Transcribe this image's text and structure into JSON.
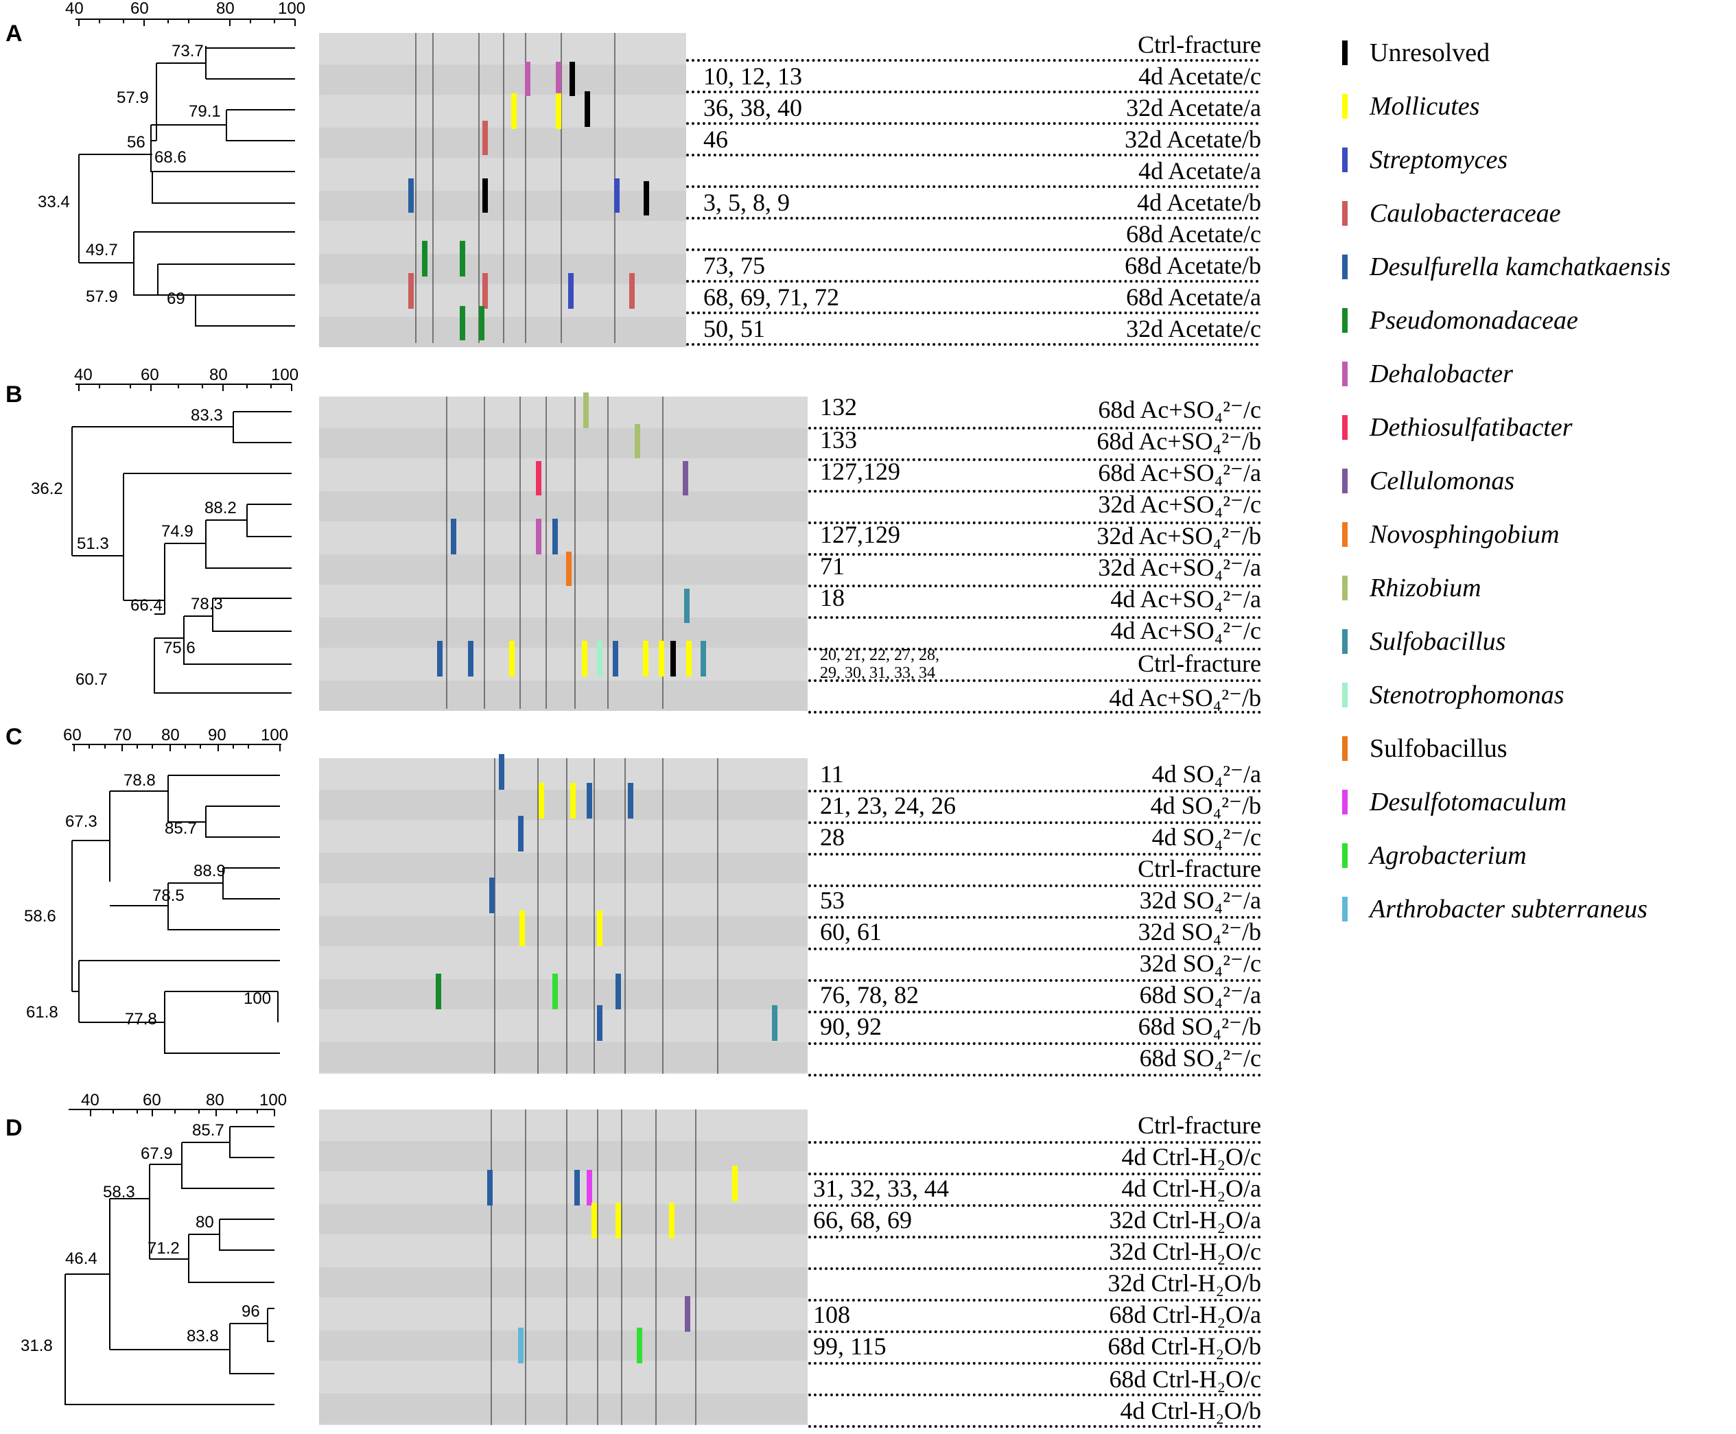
{
  "colors": {
    "unresolved": "#000000",
    "mollicutes": "#ffff00",
    "streptomyces": "#3b4cc0",
    "caulobacteraceae": "#cd5c5c",
    "desulfurella": "#2a5ea0",
    "pseudomonadaceae": "#168a2a",
    "dehalobacter": "#c05cb0",
    "dethiosulfatibacter": "#f03060",
    "cellulomonas": "#7a5a9a",
    "novosphingobium": "#f07820",
    "rhizobium": "#a8c070",
    "sulfobacillus_i": "#3a8fa0",
    "stenotrophomonas": "#a0f0c8",
    "sulfobacillus": "#e87818",
    "desulfotomaculum": "#e040f0",
    "agrobacterium": "#30e030",
    "arthrobacter": "#60b8d8"
  },
  "legend": [
    {
      "label": "Unresolved",
      "italic": false,
      "color_key": "unresolved"
    },
    {
      "label": "Mollicutes",
      "italic": true,
      "color_key": "mollicutes"
    },
    {
      "label": "Streptomyces",
      "italic": true,
      "color_key": "streptomyces"
    },
    {
      "label": "Caulobacteraceae",
      "italic": true,
      "color_key": "caulobacteraceae"
    },
    {
      "label": "Desulfurella kamchatkaensis",
      "italic": true,
      "color_key": "desulfurella"
    },
    {
      "label": "Pseudomonadaceae",
      "italic": true,
      "color_key": "pseudomonadaceae"
    },
    {
      "label": "Dehalobacter",
      "italic": true,
      "color_key": "dehalobacter"
    },
    {
      "label": "Dethiosulfatibacter",
      "italic": true,
      "color_key": "dethiosulfatibacter"
    },
    {
      "label": "Cellulomonas",
      "italic": true,
      "color_key": "cellulomonas"
    },
    {
      "label": "Novosphingobium",
      "italic": true,
      "color_key": "novosphingobium"
    },
    {
      "label": "Rhizobium",
      "italic": true,
      "color_key": "rhizobium"
    },
    {
      "label": "Sulfobacillus",
      "italic": true,
      "color_key": "sulfobacillus_i"
    },
    {
      "label": "Stenotrophomonas",
      "italic": true,
      "color_key": "stenotrophomonas"
    },
    {
      "label": "Sulfobacillus",
      "italic": false,
      "color_key": "sulfobacillus"
    },
    {
      "label": "Desulfotomaculum",
      "italic": true,
      "color_key": "desulfotomaculum"
    },
    {
      "label": "Agrobacterium",
      "italic": true,
      "color_key": "agrobacterium"
    },
    {
      "label": "Arthrobacter subterraneus",
      "italic": true,
      "color_key": "arthrobacter"
    }
  ],
  "panels": [
    {
      "id": "A",
      "scale": {
        "min": 40,
        "max": 100,
        "ticks": [
          "40",
          "60",
          "80",
          "100"
        ]
      },
      "lanes": [
        {
          "label": "Ctrl-fracture",
          "clones": ""
        },
        {
          "label": "4d Acetate/c",
          "clones": "10, 12, 13"
        },
        {
          "label": "32d Acetate/a",
          "clones": "36, 38, 40"
        },
        {
          "label": "32d Acetate/b",
          "clones": "46"
        },
        {
          "label": "4d Acetate/a",
          "clones": ""
        },
        {
          "label": "4d Acetate/b",
          "clones": "3, 5, 8, 9"
        },
        {
          "label": "68d Acetate/c",
          "clones": ""
        },
        {
          "label": "68d Acetate/b",
          "clones": "73, 75"
        },
        {
          "label": "68d Acetate/a",
          "clones": "68, 69, 71, 72"
        },
        {
          "label": "32d Acetate/c",
          "clones": "50, 51"
        }
      ],
      "nodes": [
        "73.7",
        "57.9",
        "79.1",
        "56",
        "68.6",
        "33.4",
        "49.7",
        "57.9",
        "69"
      ]
    },
    {
      "id": "B",
      "scale": {
        "min": 40,
        "max": 100,
        "ticks": [
          "40",
          "60",
          "80",
          "100"
        ]
      },
      "lanes": [
        {
          "label": "68d Ac+SO₄²⁻/c",
          "clones": "132"
        },
        {
          "label": "68d Ac+SO₄²⁻/b",
          "clones": "133"
        },
        {
          "label": "68d Ac+SO₄²⁻/a",
          "clones": "127,129"
        },
        {
          "label": "32d Ac+SO₄²⁻/c",
          "clones": ""
        },
        {
          "label": "32d Ac+SO₄²⁻/b",
          "clones": "127,129"
        },
        {
          "label": "32d Ac+SO₄²⁻/a",
          "clones": "71"
        },
        {
          "label": "4d Ac+SO₄²⁻/a",
          "clones": "18"
        },
        {
          "label": "4d Ac+SO₄²⁻/c",
          "clones": ""
        },
        {
          "label": "Ctrl-fracture",
          "clones": "20, 21, 22, 27, 28,\n29, 30, 31, 33, 34"
        },
        {
          "label": "4d Ac+SO₄²⁻/b",
          "clones": ""
        }
      ],
      "nodes": [
        "83.3",
        "36.2",
        "88.2",
        "74.9",
        "51.3",
        "66.4",
        "78.3",
        "75.6",
        "60.7"
      ]
    },
    {
      "id": "C",
      "scale": {
        "min": 60,
        "max": 100,
        "ticks": [
          "60",
          "70",
          "80",
          "90",
          "100"
        ]
      },
      "lanes": [
        {
          "label": "4d SO₄²⁻/a",
          "clones": "11"
        },
        {
          "label": "4d SO₄²⁻/b",
          "clones": "21, 23, 24, 26"
        },
        {
          "label": "4d SO₄²⁻/c",
          "clones": "28"
        },
        {
          "label": "Ctrl-fracture",
          "clones": ""
        },
        {
          "label": "32d SO₄²⁻/a",
          "clones": "53"
        },
        {
          "label": "32d SO₄²⁻/b",
          "clones": "60, 61"
        },
        {
          "label": "32d SO₄²⁻/c",
          "clones": ""
        },
        {
          "label": "68d SO₄²⁻/a",
          "clones": "76, 78, 82"
        },
        {
          "label": "68d SO₄²⁻/b",
          "clones": "90, 92"
        },
        {
          "label": "68d SO₄²⁻/c",
          "clones": ""
        }
      ],
      "nodes": [
        "78.8",
        "67.3",
        "85.7",
        "88.9",
        "78.5",
        "58.6",
        "100",
        "61.8",
        "77.8"
      ]
    },
    {
      "id": "D",
      "scale": {
        "min": 30,
        "max": 100,
        "ticks": [
          "40",
          "60",
          "80",
          "100"
        ]
      },
      "lanes": [
        {
          "label": "Ctrl-fracture",
          "clones": ""
        },
        {
          "label": "4d Ctrl-H₂O/c",
          "clones": ""
        },
        {
          "label": "4d Ctrl-H₂O/a",
          "clones": "31, 32, 33, 44"
        },
        {
          "label": "32d Ctrl-H₂O/a",
          "clones": "66, 68, 69"
        },
        {
          "label": "32d Ctrl-H₂O/c",
          "clones": ""
        },
        {
          "label": "32d Ctrl-H₂O/b",
          "clones": ""
        },
        {
          "label": "68d Ctrl-H₂O/a",
          "clones": "108"
        },
        {
          "label": "68d Ctrl-H₂O/b",
          "clones": "99, 115"
        },
        {
          "label": "68d Ctrl-H₂O/c",
          "clones": ""
        },
        {
          "label": "4d Ctrl-H₂O/b",
          "clones": ""
        }
      ],
      "nodes": [
        "85.7",
        "67.9",
        "58.3",
        "80",
        "71.2",
        "46.4",
        "96",
        "83.8",
        "31.8"
      ]
    }
  ]
}
